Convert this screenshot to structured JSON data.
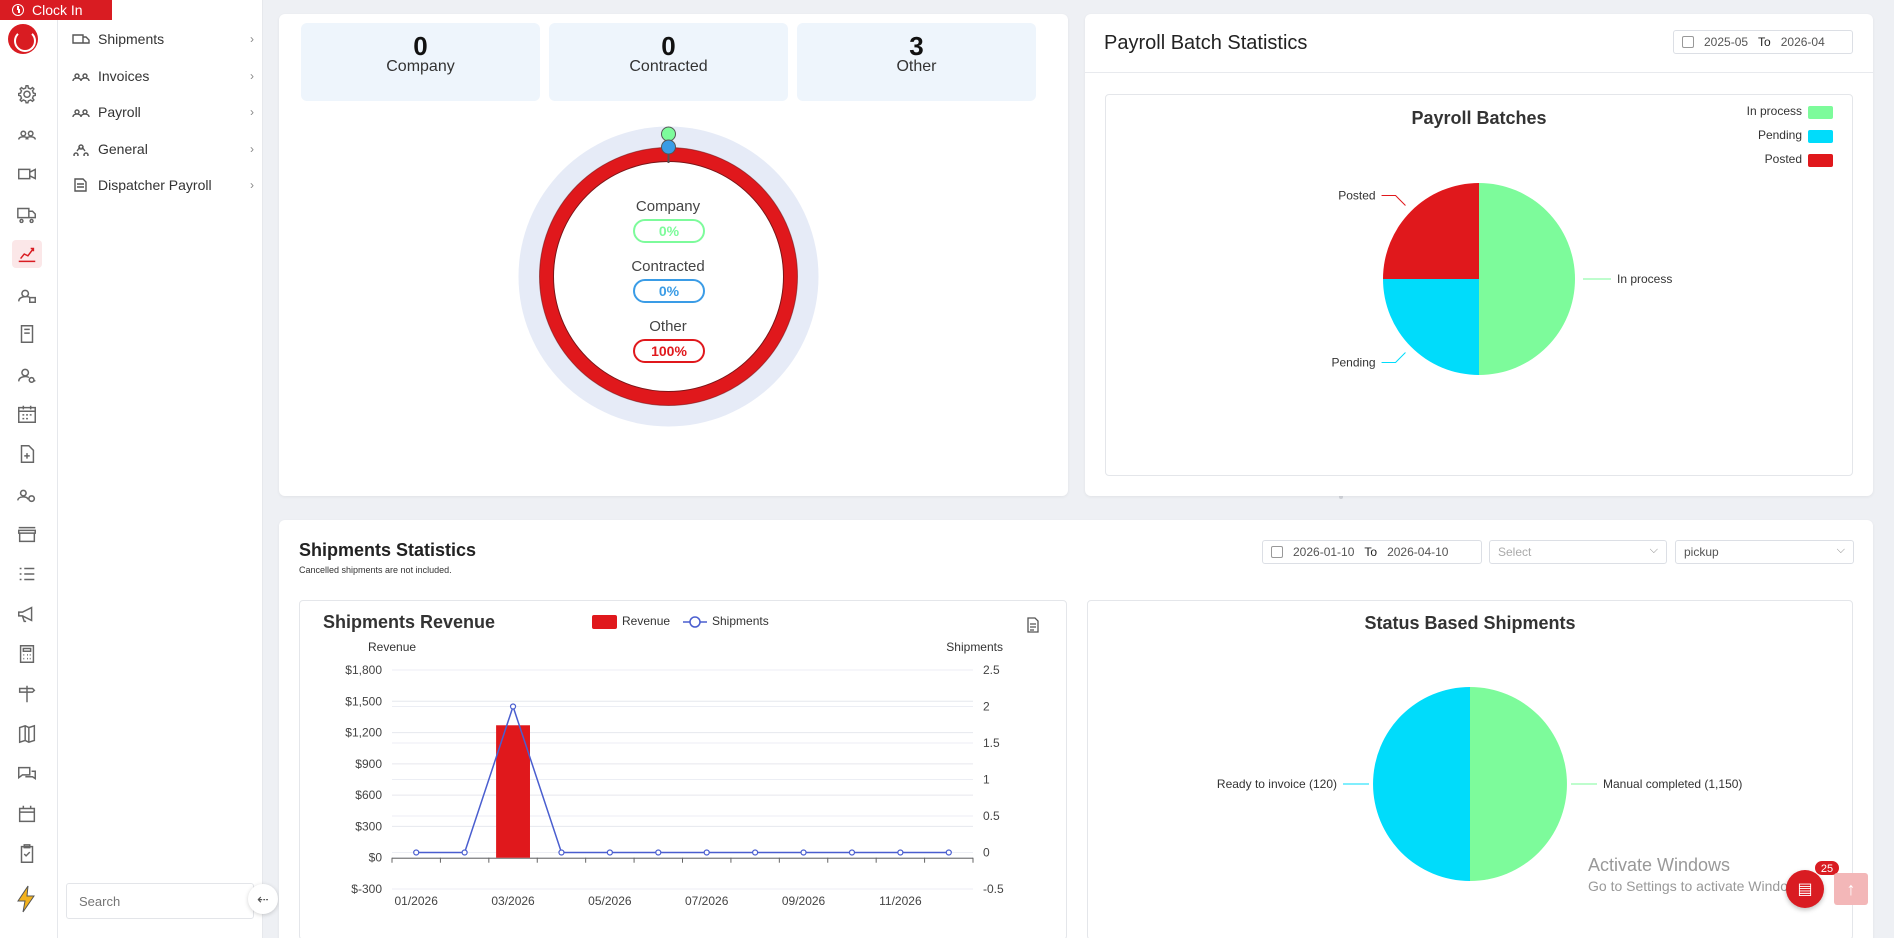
{
  "header": {
    "clock_in_label": "Clock In"
  },
  "subnav": {
    "items": [
      {
        "label": "Shipments",
        "icon": "truck-icon"
      },
      {
        "label": "Invoices",
        "icon": "team-icon"
      },
      {
        "label": "Payroll",
        "icon": "team-icon"
      },
      {
        "label": "General",
        "icon": "nodes-icon"
      },
      {
        "label": "Dispatcher Payroll",
        "icon": "document-icon"
      }
    ],
    "search_placeholder": "Search"
  },
  "rail_icons": [
    "gear-icon",
    "team-icon",
    "video-icon",
    "truck-icon",
    "dashboard-chart-icon",
    "user-lock-icon",
    "book-icon",
    "user-search-icon",
    "calendar-icon",
    "file-add-icon",
    "users-gear-icon",
    "store-icon",
    "list-icon",
    "megaphone-icon",
    "calculator-icon",
    "signpost-icon",
    "map-icon",
    "chat-icon",
    "calendar-solid-icon",
    "checklist-icon"
  ],
  "driver_type": {
    "cards": [
      {
        "value": "0",
        "label": "Company"
      },
      {
        "value": "0",
        "label": "Contracted"
      },
      {
        "value": "3",
        "label": "Other"
      }
    ],
    "donut": [
      {
        "label": "Company",
        "pct": "0%",
        "color": "#7dfb9b"
      },
      {
        "label": "Contracted",
        "pct": "0%",
        "color": "#3a9ce6"
      },
      {
        "label": "Other",
        "pct": "100%",
        "color": "#e0181c"
      }
    ]
  },
  "payroll": {
    "title": "Payroll Batch Statistics",
    "date_from": "2025-05",
    "date_to_label": "To",
    "date_to": "2026-04"
  },
  "shipments": {
    "title": "Shipments Statistics",
    "subtitle": "Cancelled shipments are not included.",
    "date_from": "2026-01-10",
    "date_to_label": "To",
    "date_to": "2026-04-10",
    "select_placeholder": "Select",
    "type_value": "pickup"
  },
  "revenue_chart_labels": {
    "title": "Shipments Revenue",
    "legend_revenue": "Revenue",
    "legend_shipments": "Shipments",
    "left_axis": "Revenue",
    "right_axis": "Shipments"
  },
  "status_chart_title": "Status Based Shipments",
  "watermark": {
    "line1": "Activate Windows",
    "line2": "Go to Settings to activate Windows."
  },
  "chat_badge": "25",
  "colors": {
    "brand": "#d91c22",
    "green": "#7dfb9b",
    "cyan": "#00dcfb",
    "red": "#e0181c",
    "line": "#4a5ecf"
  },
  "chart_data": [
    {
      "type": "pie",
      "title": "Payroll Batches",
      "legend": "top-right",
      "slices": [
        {
          "label": "In process",
          "value": 2,
          "color": "#7dfb9b"
        },
        {
          "label": "Pending",
          "value": 1,
          "color": "#00dcfb"
        },
        {
          "label": "Posted",
          "value": 1,
          "color": "#e0181c"
        }
      ]
    },
    {
      "type": "bar",
      "title": "Shipments Revenue",
      "categories": [
        "01/2026",
        "02/2026",
        "03/2026",
        "04/2026",
        "05/2026",
        "06/2026",
        "07/2026",
        "08/2026",
        "09/2026",
        "10/2026",
        "11/2026",
        "12/2026"
      ],
      "xtick_labels": [
        "01/2026",
        "03/2026",
        "05/2026",
        "07/2026",
        "09/2026",
        "11/2026"
      ],
      "series": [
        {
          "name": "Revenue",
          "type": "bar",
          "axis": "left",
          "values": [
            0,
            0,
            1270,
            0,
            0,
            0,
            0,
            0,
            0,
            0,
            0,
            0
          ]
        },
        {
          "name": "Shipments",
          "type": "line",
          "axis": "right",
          "values": [
            0,
            0,
            2,
            0,
            0,
            0,
            0,
            0,
            0,
            0,
            0,
            0
          ]
        }
      ],
      "ylabel": "Revenue",
      "ylim": [
        -300,
        1800
      ],
      "yticks": [
        "$1,800",
        "$1,500",
        "$1,200",
        "$900",
        "$600",
        "$300",
        "$0",
        "$-300"
      ],
      "y2label": "Shipments",
      "y2lim": [
        -0.5,
        2.5
      ],
      "y2ticks": [
        "2.5",
        "2",
        "1.5",
        "1",
        "0.5",
        "0",
        "-0.5"
      ],
      "legend": "top"
    },
    {
      "type": "pie",
      "title": "Status Based Shipments",
      "slices": [
        {
          "label": "Manual completed (1,150)",
          "value": 1150,
          "color": "#7dfb9b"
        },
        {
          "label": "Ready to invoice (120)",
          "value": 120,
          "color": "#00dcfb"
        }
      ]
    }
  ]
}
